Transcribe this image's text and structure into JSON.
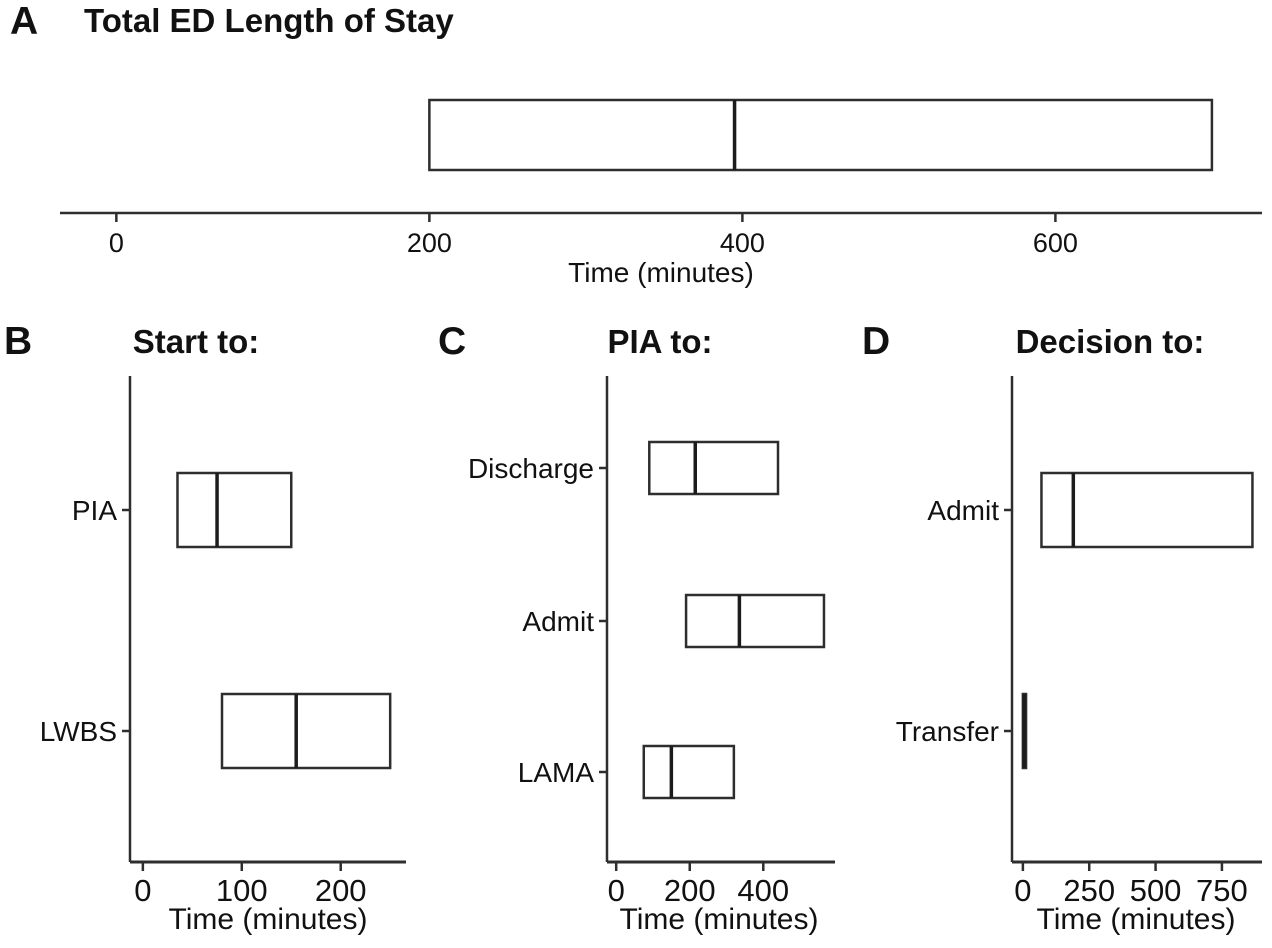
{
  "colors": {
    "stroke": "#2e2e2e",
    "median": "#1c1c1c",
    "text": "#111111",
    "background": "#ffffff"
  },
  "chart_data": [
    {
      "type": "boxplot",
      "orientation": "horizontal",
      "letter": "A",
      "title": "Total ED Length of Stay",
      "xlabel": "Time (minutes)",
      "xlim": [
        -36,
        732
      ],
      "xticks": [
        0,
        200,
        400,
        600
      ],
      "grid": false,
      "boxes": [
        {
          "label": "",
          "q1": 200,
          "median": 395,
          "q3": 700
        }
      ]
    },
    {
      "type": "boxplot",
      "orientation": "horizontal",
      "letter": "B",
      "title": "Start to:",
      "xlabel": "Time (minutes)",
      "xlim": [
        -13,
        266
      ],
      "xticks": [
        0,
        100,
        200
      ],
      "grid": false,
      "boxes": [
        {
          "label": "PIA",
          "q1": 35,
          "median": 75,
          "q3": 150
        },
        {
          "label": "LWBS",
          "q1": 80,
          "median": 155,
          "q3": 250
        }
      ]
    },
    {
      "type": "boxplot",
      "orientation": "horizontal",
      "letter": "C",
      "title": "PIA to:",
      "xlabel": "Time (minutes)",
      "xlim": [
        -25,
        595
      ],
      "xticks": [
        0,
        200,
        400
      ],
      "grid": false,
      "boxes": [
        {
          "label": "Discharge",
          "q1": 90,
          "median": 215,
          "q3": 440
        },
        {
          "label": "Admit",
          "q1": 190,
          "median": 335,
          "q3": 565
        },
        {
          "label": "LAMA",
          "q1": 75,
          "median": 150,
          "q3": 320
        }
      ]
    },
    {
      "type": "boxplot",
      "orientation": "horizontal",
      "letter": "D",
      "title": "Decision to:",
      "xlabel": "Time (minutes)",
      "xlim": [
        -41,
        901
      ],
      "xticks": [
        0,
        250,
        500,
        750
      ],
      "grid": false,
      "boxes": [
        {
          "label": "Admit",
          "q1": 70,
          "median": 190,
          "q3": 865
        },
        {
          "label": "Transfer",
          "q1": 0,
          "median": 5,
          "q3": 12
        }
      ]
    }
  ]
}
